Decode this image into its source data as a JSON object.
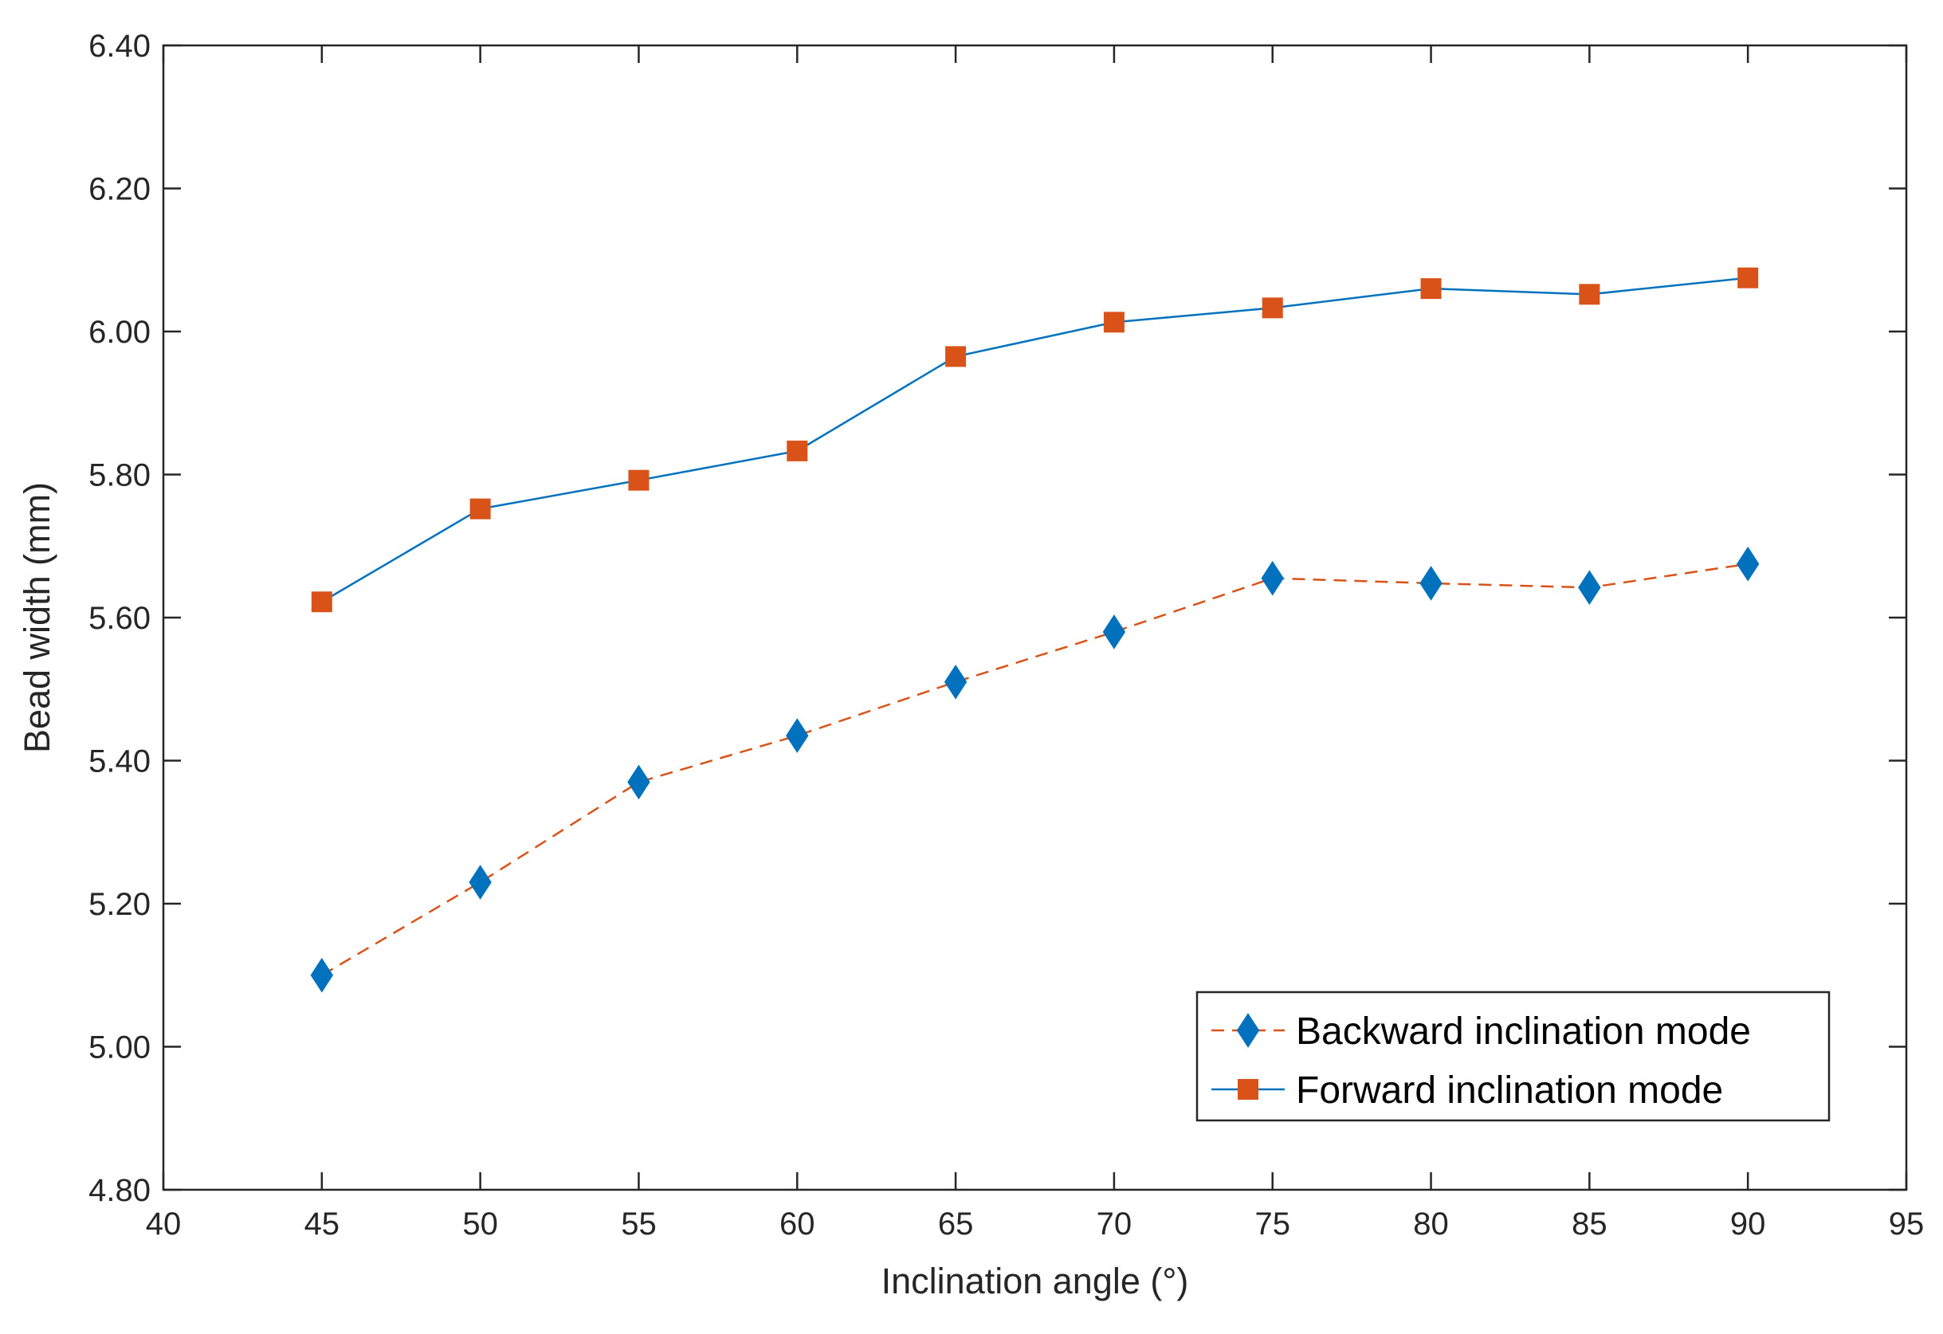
{
  "chart_data": {
    "type": "line",
    "title": "",
    "xlabel": "Inclination angle (°)",
    "ylabel": "Bead width (mm)",
    "xlim": [
      40,
      95
    ],
    "ylim": [
      4.8,
      6.4
    ],
    "grid": false,
    "legend_position": "bottom-right",
    "x_ticks": [
      "40",
      "45",
      "50",
      "55",
      "60",
      "65",
      "70",
      "75",
      "80",
      "85",
      "90",
      "95"
    ],
    "y_ticks": [
      "4.80",
      "5.00",
      "5.20",
      "5.40",
      "5.60",
      "5.80",
      "6.00",
      "6.20",
      "6.40"
    ],
    "x": [
      45,
      50,
      55,
      60,
      65,
      70,
      75,
      80,
      85,
      90
    ],
    "series": [
      {
        "name": "Backward inclination mode",
        "values": [
          5.1,
          5.23,
          5.37,
          5.435,
          5.51,
          5.58,
          5.655,
          5.648,
          5.642,
          5.675
        ],
        "line_color": "#D95319",
        "marker_color": "#0072BD",
        "line_style": "dashed",
        "marker": "diamond"
      },
      {
        "name": "Forward inclination mode",
        "values": [
          5.622,
          5.752,
          5.792,
          5.833,
          5.965,
          6.013,
          6.033,
          6.06,
          6.052,
          6.075
        ],
        "line_color": "#0072BD",
        "marker_color": "#D95319",
        "line_style": "solid",
        "marker": "square"
      }
    ]
  }
}
